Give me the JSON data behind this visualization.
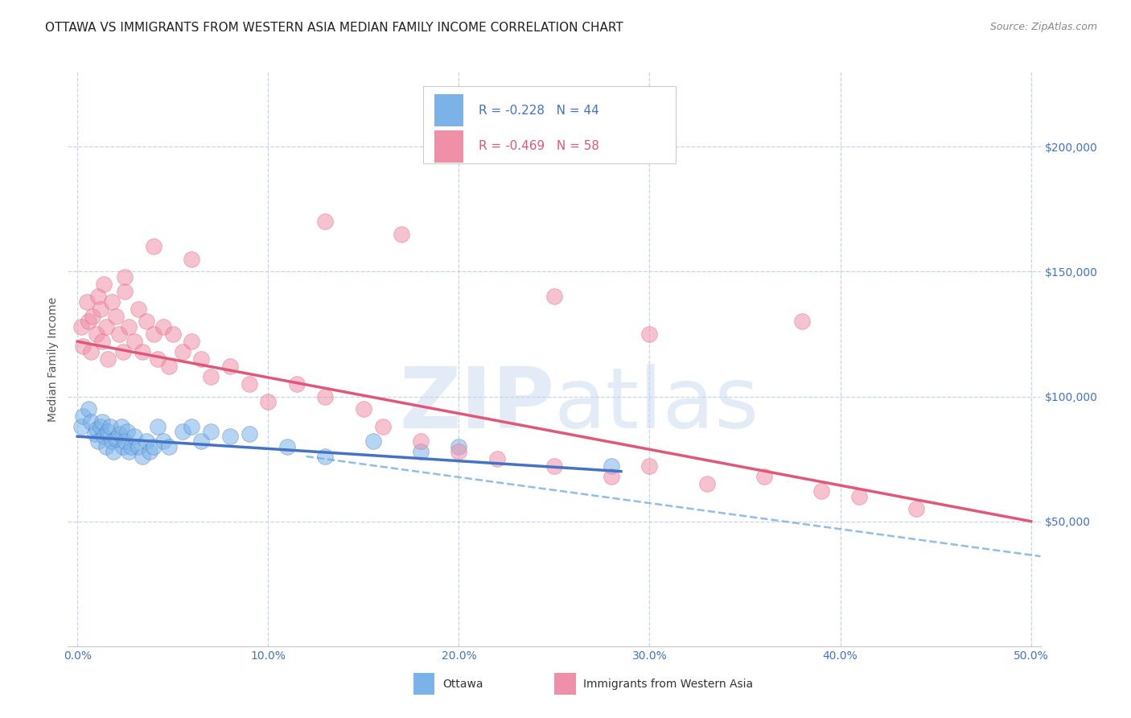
{
  "title": "OTTAWA VS IMMIGRANTS FROM WESTERN ASIA MEDIAN FAMILY INCOME CORRELATION CHART",
  "source": "Source: ZipAtlas.com",
  "ylabel": "Median Family Income",
  "xlim": [
    -0.005,
    0.505
  ],
  "ylim": [
    0,
    230000
  ],
  "xtick_labels": [
    "0.0%",
    "10.0%",
    "20.0%",
    "30.0%",
    "40.0%",
    "50.0%"
  ],
  "xtick_values": [
    0.0,
    0.1,
    0.2,
    0.3,
    0.4,
    0.5
  ],
  "ytick_labels": [
    "$50,000",
    "$100,000",
    "$150,000",
    "$200,000"
  ],
  "ytick_values": [
    50000,
    100000,
    150000,
    200000
  ],
  "ottawa_color": "#7bb3e8",
  "immigrants_color": "#f090a8",
  "ottawa_line_color": "#4472c4",
  "immigrants_line_color": "#e05878",
  "dashed_line_color": "#7bb3e8",
  "legend_r1_color": "#4472c4",
  "legend_r2_color": "#e05878",
  "legend_label1": "Ottawa",
  "legend_label2": "Immigrants from Western Asia",
  "watermark": "ZIPatlas",
  "title_fontsize": 11,
  "ottawa_scatter": {
    "x": [
      0.002,
      0.003,
      0.006,
      0.007,
      0.009,
      0.01,
      0.011,
      0.012,
      0.013,
      0.014,
      0.015,
      0.016,
      0.017,
      0.018,
      0.019,
      0.02,
      0.022,
      0.023,
      0.024,
      0.025,
      0.026,
      0.027,
      0.028,
      0.03,
      0.032,
      0.034,
      0.036,
      0.038,
      0.04,
      0.042,
      0.045,
      0.048,
      0.055,
      0.06,
      0.065,
      0.07,
      0.08,
      0.09,
      0.11,
      0.13,
      0.155,
      0.18,
      0.2,
      0.28
    ],
    "y": [
      88000,
      92000,
      95000,
      90000,
      85000,
      87000,
      82000,
      88000,
      90000,
      84000,
      80000,
      86000,
      88000,
      82000,
      78000,
      83000,
      85000,
      88000,
      80000,
      82000,
      86000,
      78000,
      80000,
      84000,
      80000,
      76000,
      82000,
      78000,
      80000,
      88000,
      82000,
      80000,
      86000,
      88000,
      82000,
      86000,
      84000,
      85000,
      80000,
      76000,
      82000,
      78000,
      80000,
      72000
    ]
  },
  "immigrants_scatter": {
    "x": [
      0.002,
      0.003,
      0.005,
      0.006,
      0.007,
      0.008,
      0.01,
      0.011,
      0.012,
      0.013,
      0.014,
      0.015,
      0.016,
      0.018,
      0.02,
      0.022,
      0.024,
      0.025,
      0.027,
      0.03,
      0.032,
      0.034,
      0.036,
      0.04,
      0.042,
      0.045,
      0.048,
      0.05,
      0.055,
      0.06,
      0.065,
      0.07,
      0.08,
      0.09,
      0.1,
      0.115,
      0.13,
      0.15,
      0.16,
      0.18,
      0.2,
      0.22,
      0.25,
      0.28,
      0.3,
      0.33,
      0.36,
      0.39,
      0.41,
      0.44,
      0.17,
      0.13,
      0.38,
      0.25,
      0.3,
      0.06,
      0.025,
      0.04
    ],
    "y": [
      128000,
      120000,
      138000,
      130000,
      118000,
      132000,
      125000,
      140000,
      135000,
      122000,
      145000,
      128000,
      115000,
      138000,
      132000,
      125000,
      118000,
      142000,
      128000,
      122000,
      135000,
      118000,
      130000,
      125000,
      115000,
      128000,
      112000,
      125000,
      118000,
      122000,
      115000,
      108000,
      112000,
      105000,
      98000,
      105000,
      100000,
      95000,
      88000,
      82000,
      78000,
      75000,
      72000,
      68000,
      72000,
      65000,
      68000,
      62000,
      60000,
      55000,
      165000,
      170000,
      130000,
      140000,
      125000,
      155000,
      148000,
      160000
    ]
  },
  "ottawa_trendline": {
    "x": [
      0.0,
      0.285
    ],
    "y": [
      84000,
      70000
    ]
  },
  "immigrants_trendline": {
    "x": [
      0.0,
      0.5
    ],
    "y": [
      122000,
      50000
    ]
  },
  "dashed_trendline": {
    "x": [
      0.12,
      0.505
    ],
    "y": [
      76000,
      36000
    ]
  },
  "background_color": "#ffffff",
  "grid_color": "#c8d4e8",
  "axis_color": "#c0c8d8",
  "ytick_color": "#4472c4",
  "xtick_color": "#4472c4"
}
